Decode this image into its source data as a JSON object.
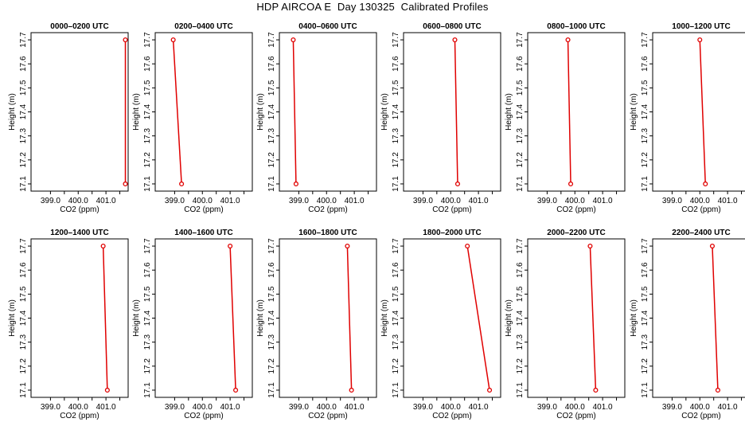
{
  "figure": {
    "title": "HDP AIRCOA E  Day 130325  Calibrated Profiles"
  },
  "colors": {
    "line": "#e00000",
    "point": "#e00000",
    "frame": "#000000"
  },
  "chart_data": [
    {
      "type": "line",
      "title": "0000–0200 UTC",
      "xlabel": "CO2 (ppm)",
      "ylabel": "Height (m)",
      "xlim": [
        398.3,
        401.8
      ],
      "ylim": [
        17.07,
        17.73
      ],
      "xticks": [
        "399.0",
        "400.0",
        "401.0"
      ],
      "yticks": [
        "17.1",
        "17.2",
        "17.3",
        "17.4",
        "17.5",
        "17.6",
        "17.7"
      ],
      "series": [
        {
          "x": [
            401.7,
            401.7
          ],
          "y": [
            17.1,
            17.7
          ]
        }
      ]
    },
    {
      "type": "line",
      "title": "0200–0400 UTC",
      "xlabel": "CO2 (ppm)",
      "ylabel": "Height (m)",
      "xlim": [
        398.3,
        401.8
      ],
      "ylim": [
        17.07,
        17.73
      ],
      "xticks": [
        "399.0",
        "400.0",
        "401.0"
      ],
      "yticks": [
        "17.1",
        "17.2",
        "17.3",
        "17.4",
        "17.5",
        "17.6",
        "17.7"
      ],
      "series": [
        {
          "x": [
            399.25,
            398.95
          ],
          "y": [
            17.1,
            17.7
          ]
        }
      ]
    },
    {
      "type": "line",
      "title": "0400–0600 UTC",
      "xlabel": "CO2 (ppm)",
      "ylabel": "Height (m)",
      "xlim": [
        398.3,
        401.8
      ],
      "ylim": [
        17.07,
        17.73
      ],
      "xticks": [
        "399.0",
        "400.0",
        "401.0"
      ],
      "yticks": [
        "17.1",
        "17.2",
        "17.3",
        "17.4",
        "17.5",
        "17.6",
        "17.7"
      ],
      "series": [
        {
          "x": [
            398.9,
            398.8
          ],
          "y": [
            17.1,
            17.7
          ]
        }
      ]
    },
    {
      "type": "line",
      "title": "0600–0800 UTC",
      "xlabel": "CO2 (ppm)",
      "ylabel": "Height (m)",
      "xlim": [
        398.3,
        401.8
      ],
      "ylim": [
        17.07,
        17.73
      ],
      "xticks": [
        "399.0",
        "400.0",
        "401.0"
      ],
      "yticks": [
        "17.1",
        "17.2",
        "17.3",
        "17.4",
        "17.5",
        "17.6",
        "17.7"
      ],
      "series": [
        {
          "x": [
            400.25,
            400.15
          ],
          "y": [
            17.1,
            17.7
          ]
        }
      ]
    },
    {
      "type": "line",
      "title": "0800–1000 UTC",
      "xlabel": "CO2 (ppm)",
      "ylabel": "Height (m)",
      "xlim": [
        398.3,
        401.8
      ],
      "ylim": [
        17.07,
        17.73
      ],
      "xticks": [
        "399.0",
        "400.0",
        "401.0"
      ],
      "yticks": [
        "17.1",
        "17.2",
        "17.3",
        "17.4",
        "17.5",
        "17.6",
        "17.7"
      ],
      "series": [
        {
          "x": [
            399.85,
            399.75
          ],
          "y": [
            17.1,
            17.7
          ]
        }
      ]
    },
    {
      "type": "line",
      "title": "1000–1200 UTC",
      "xlabel": "CO2 (ppm)",
      "ylabel": "Height (m)",
      "xlim": [
        398.3,
        401.8
      ],
      "ylim": [
        17.07,
        17.73
      ],
      "xticks": [
        "399.0",
        "400.0",
        "401.0"
      ],
      "yticks": [
        "17.1",
        "17.2",
        "17.3",
        "17.4",
        "17.5",
        "17.6",
        "17.7"
      ],
      "series": [
        {
          "x": [
            400.2,
            400.0
          ],
          "y": [
            17.1,
            17.7
          ]
        }
      ]
    },
    {
      "type": "line",
      "title": "1200–1400 UTC",
      "xlabel": "CO2 (ppm)",
      "ylabel": "Height (m)",
      "xlim": [
        398.3,
        401.8
      ],
      "ylim": [
        17.07,
        17.73
      ],
      "xticks": [
        "399.0",
        "400.0",
        "401.0"
      ],
      "yticks": [
        "17.1",
        "17.2",
        "17.3",
        "17.4",
        "17.5",
        "17.6",
        "17.7"
      ],
      "series": [
        {
          "x": [
            401.05,
            400.9
          ],
          "y": [
            17.1,
            17.7
          ]
        }
      ]
    },
    {
      "type": "line",
      "title": "1400–1600 UTC",
      "xlabel": "CO2 (ppm)",
      "ylabel": "Height (m)",
      "xlim": [
        398.3,
        401.8
      ],
      "ylim": [
        17.07,
        17.73
      ],
      "xticks": [
        "399.0",
        "400.0",
        "401.0"
      ],
      "yticks": [
        "17.1",
        "17.2",
        "17.3",
        "17.4",
        "17.5",
        "17.6",
        "17.7"
      ],
      "series": [
        {
          "x": [
            401.2,
            401.0
          ],
          "y": [
            17.1,
            17.7
          ]
        }
      ]
    },
    {
      "type": "line",
      "title": "1600–1800 UTC",
      "xlabel": "CO2 (ppm)",
      "ylabel": "Height (m)",
      "xlim": [
        398.3,
        401.8
      ],
      "ylim": [
        17.07,
        17.73
      ],
      "xticks": [
        "399.0",
        "400.0",
        "401.0"
      ],
      "yticks": [
        "17.1",
        "17.2",
        "17.3",
        "17.4",
        "17.5",
        "17.6",
        "17.7"
      ],
      "series": [
        {
          "x": [
            400.9,
            400.75
          ],
          "y": [
            17.1,
            17.7
          ]
        }
      ]
    },
    {
      "type": "line",
      "title": "1800–2000 UTC",
      "xlabel": "CO2 (ppm)",
      "ylabel": "Height (m)",
      "xlim": [
        398.3,
        401.8
      ],
      "ylim": [
        17.07,
        17.73
      ],
      "xticks": [
        "399.0",
        "400.0",
        "401.0"
      ],
      "yticks": [
        "17.1",
        "17.2",
        "17.3",
        "17.4",
        "17.5",
        "17.6",
        "17.7"
      ],
      "series": [
        {
          "x": [
            401.4,
            400.6
          ],
          "y": [
            17.1,
            17.7
          ]
        }
      ]
    },
    {
      "type": "line",
      "title": "2000–2200 UTC",
      "xlabel": "CO2 (ppm)",
      "ylabel": "Height (m)",
      "xlim": [
        398.3,
        401.8
      ],
      "ylim": [
        17.07,
        17.73
      ],
      "xticks": [
        "399.0",
        "400.0",
        "401.0"
      ],
      "yticks": [
        "17.1",
        "17.2",
        "17.3",
        "17.4",
        "17.5",
        "17.6",
        "17.7"
      ],
      "series": [
        {
          "x": [
            400.75,
            400.55
          ],
          "y": [
            17.1,
            17.7
          ]
        }
      ]
    },
    {
      "type": "line",
      "title": "2200–2400 UTC",
      "xlabel": "CO2 (ppm)",
      "ylabel": "Height (m)",
      "xlim": [
        398.3,
        401.8
      ],
      "ylim": [
        17.07,
        17.73
      ],
      "xticks": [
        "399.0",
        "400.0",
        "401.0"
      ],
      "yticks": [
        "17.1",
        "17.2",
        "17.3",
        "17.4",
        "17.5",
        "17.6",
        "17.7"
      ],
      "series": [
        {
          "x": [
            400.65,
            400.45
          ],
          "y": [
            17.1,
            17.7
          ]
        }
      ]
    }
  ]
}
